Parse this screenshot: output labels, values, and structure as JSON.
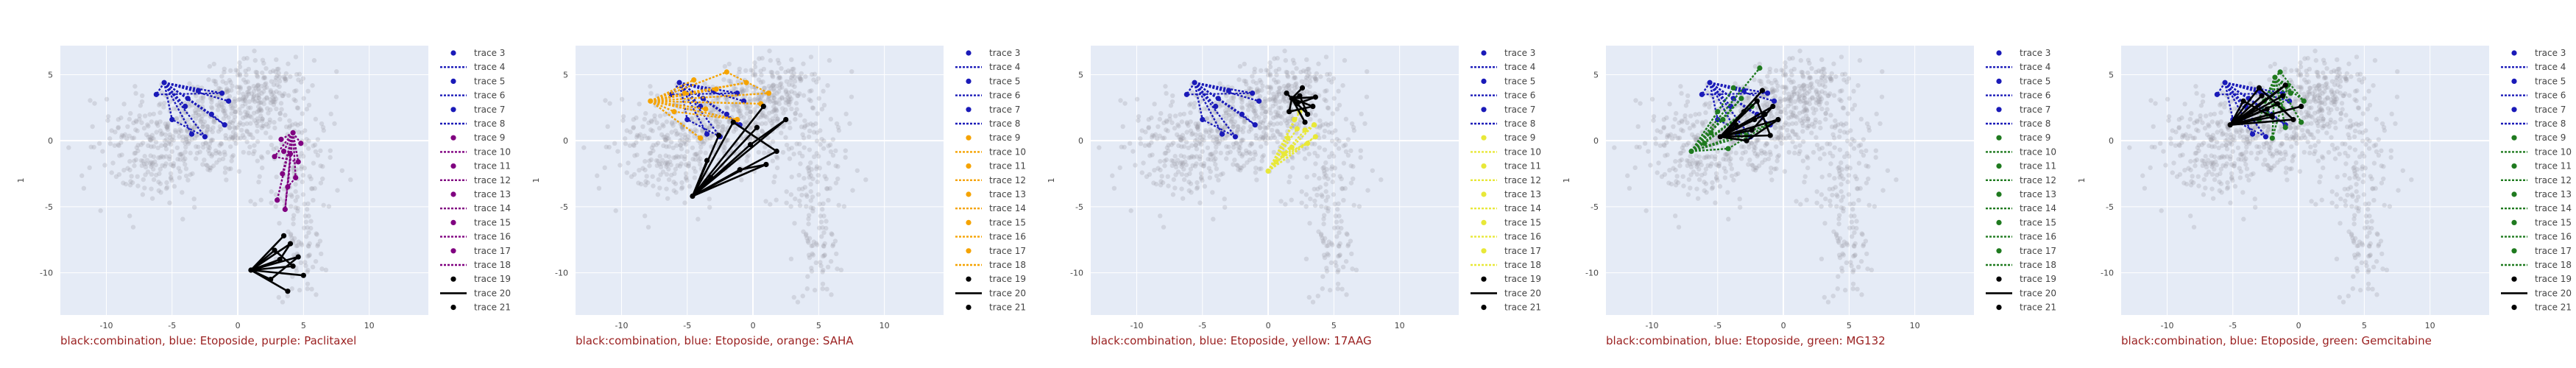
{
  "legend_traces": [
    "trace 3",
    "trace 4",
    "trace 5",
    "trace 6",
    "trace 7",
    "trace 8",
    "trace 9",
    "trace 10",
    "trace 11",
    "trace 12",
    "trace 13",
    "trace 14",
    "trace 15",
    "trace 16",
    "trace 17",
    "trace 18",
    "trace 19",
    "trace 20",
    "trace 21"
  ],
  "chart_data": [
    {
      "type": "scatter",
      "caption": "black:combination, blue: Etoposide, purple: Paclitaxel",
      "ylabel": "1",
      "xlim": [
        -13.5,
        14.5
      ],
      "ylim": [
        -13.2,
        7.2
      ],
      "xticks": [
        -10,
        -5,
        0,
        5,
        10
      ],
      "yticks": [
        5,
        0,
        -5,
        -10
      ],
      "grid": true,
      "legend_position": "right",
      "colors": {
        "background_points": "#9a9aa6",
        "etoposide": "#1a1ab8",
        "drug": "#800080",
        "combination": "#000000"
      },
      "etoposide": [
        [
          -5.6,
          4.4
        ],
        [
          -3.0,
          3.8
        ],
        [
          -1.2,
          3.6
        ],
        [
          -6.2,
          3.5
        ],
        [
          -4.0,
          2.6
        ],
        [
          -2.0,
          2.0
        ],
        [
          -1.0,
          1.2
        ],
        [
          -3.5,
          0.5
        ],
        [
          -2.5,
          0.3
        ],
        [
          -5.0,
          1.6
        ],
        [
          -0.7,
          3.0
        ],
        [
          -3.8,
          3.2
        ]
      ],
      "drug": [
        [
          4.2,
          0.6
        ],
        [
          3.5,
          -0.8
        ],
        [
          4.6,
          -1.6
        ],
        [
          2.8,
          -1.2
        ],
        [
          3.4,
          -2.5
        ],
        [
          4.4,
          -2.8
        ],
        [
          3.8,
          -3.5
        ],
        [
          3.0,
          -4.5
        ],
        [
          3.6,
          -5.2
        ],
        [
          4.0,
          -1.0
        ],
        [
          3.3,
          0.1
        ],
        [
          4.8,
          -0.2
        ]
      ],
      "combination": [
        [
          1.0,
          -9.8
        ],
        [
          3.5,
          -7.2
        ],
        [
          4.6,
          -8.8
        ],
        [
          2.5,
          -10.5
        ],
        [
          3.8,
          -11.4
        ],
        [
          4.2,
          -9.5
        ],
        [
          2.8,
          -8.3
        ],
        [
          5.0,
          -10.2
        ],
        [
          3.2,
          -9.0
        ],
        [
          4.0,
          -7.8
        ]
      ]
    },
    {
      "type": "scatter",
      "caption": "black:combination, blue: Etoposide, orange: SAHA",
      "ylabel": "1",
      "xlim": [
        -13.5,
        14.5
      ],
      "ylim": [
        -13.2,
        7.2
      ],
      "xticks": [
        -10,
        -5,
        0,
        5,
        10
      ],
      "yticks": [
        5,
        0,
        -5,
        -10
      ],
      "grid": true,
      "legend_position": "right",
      "colors": {
        "background_points": "#9a9aa6",
        "etoposide": "#1a1ab8",
        "drug": "#f5a300",
        "combination": "#000000"
      },
      "etoposide": [
        [
          -5.6,
          4.4
        ],
        [
          -3.0,
          3.8
        ],
        [
          -1.2,
          3.6
        ],
        [
          -6.2,
          3.5
        ],
        [
          -4.0,
          2.6
        ],
        [
          -2.0,
          2.0
        ],
        [
          -1.0,
          1.2
        ],
        [
          -3.5,
          0.5
        ],
        [
          -2.5,
          0.3
        ],
        [
          -5.0,
          1.6
        ],
        [
          -0.7,
          3.0
        ],
        [
          -3.8,
          3.2
        ]
      ],
      "drug": [
        [
          -7.8,
          3.0
        ],
        [
          -4.5,
          4.6
        ],
        [
          -2.0,
          5.2
        ],
        [
          1.2,
          3.6
        ],
        [
          -3.6,
          2.4
        ],
        [
          -6.0,
          2.2
        ],
        [
          -1.2,
          1.6
        ],
        [
          -4.0,
          0.2
        ],
        [
          -0.5,
          4.4
        ],
        [
          -5.2,
          3.6
        ],
        [
          0.6,
          2.8
        ],
        [
          -2.8,
          3.9
        ]
      ],
      "combination": [
        [
          -4.6,
          -4.2
        ],
        [
          0.8,
          2.6
        ],
        [
          -1.5,
          1.4
        ],
        [
          1.8,
          -0.8
        ],
        [
          -3.5,
          -1.5
        ],
        [
          -0.2,
          -0.3
        ],
        [
          2.5,
          1.6
        ],
        [
          -2.6,
          0.4
        ],
        [
          1.0,
          -1.8
        ],
        [
          -1.0,
          -2.2
        ],
        [
          0.3,
          1.0
        ],
        [
          -3.2,
          -2.8
        ]
      ]
    },
    {
      "type": "scatter",
      "caption": "black:combination, blue: Etoposide, yellow: 17AAG",
      "ylabel": "1",
      "xlim": [
        -13.5,
        14.5
      ],
      "ylim": [
        -13.2,
        7.2
      ],
      "xticks": [
        -10,
        -5,
        0,
        5,
        10
      ],
      "yticks": [
        5,
        0,
        -5,
        -10
      ],
      "grid": true,
      "legend_position": "right",
      "colors": {
        "background_points": "#9a9aa6",
        "etoposide": "#1a1ab8",
        "drug": "#e8e838",
        "combination": "#000000"
      },
      "etoposide": [
        [
          -5.6,
          4.4
        ],
        [
          -3.0,
          3.8
        ],
        [
          -1.2,
          3.6
        ],
        [
          -6.2,
          3.5
        ],
        [
          -4.0,
          2.6
        ],
        [
          -2.0,
          2.0
        ],
        [
          -1.0,
          1.2
        ],
        [
          -3.5,
          0.5
        ],
        [
          -2.5,
          0.3
        ],
        [
          -5.0,
          1.6
        ],
        [
          -0.7,
          3.0
        ],
        [
          -3.8,
          3.2
        ]
      ],
      "drug": [
        [
          0.0,
          -2.3
        ],
        [
          1.5,
          0.2
        ],
        [
          2.8,
          0.8
        ],
        [
          3.5,
          1.2
        ],
        [
          2.0,
          1.6
        ],
        [
          3.0,
          -0.2
        ],
        [
          1.2,
          -1.0
        ],
        [
          2.4,
          2.2
        ],
        [
          3.6,
          0.3
        ],
        [
          0.6,
          -1.6
        ],
        [
          2.2,
          0.9
        ],
        [
          1.8,
          -0.5
        ]
      ],
      "combination": [
        [
          1.8,
          3.2
        ],
        [
          2.6,
          4.0
        ],
        [
          3.4,
          2.6
        ],
        [
          1.6,
          2.2
        ],
        [
          2.8,
          1.4
        ],
        [
          3.6,
          3.3
        ],
        [
          2.2,
          2.8
        ],
        [
          1.4,
          3.6
        ],
        [
          3.0,
          2.0
        ],
        [
          2.4,
          3.4
        ]
      ]
    },
    {
      "type": "scatter",
      "caption": "black:combination, blue: Etoposide, green: MG132",
      "ylabel": "1",
      "xlim": [
        -13.5,
        14.5
      ],
      "ylim": [
        -13.2,
        7.2
      ],
      "xticks": [
        -10,
        -5,
        0,
        5,
        10
      ],
      "yticks": [
        5,
        0,
        -5,
        -10
      ],
      "grid": true,
      "legend_position": "right",
      "colors": {
        "background_points": "#9a9aa6",
        "etoposide": "#1a1ab8",
        "drug": "#1f7a1f",
        "combination": "#000000"
      },
      "etoposide": [
        [
          -5.6,
          4.4
        ],
        [
          -3.0,
          3.8
        ],
        [
          -1.2,
          3.6
        ],
        [
          -6.2,
          3.5
        ],
        [
          -4.0,
          2.6
        ],
        [
          -2.0,
          2.0
        ],
        [
          -1.0,
          1.2
        ],
        [
          -3.5,
          0.5
        ],
        [
          -2.5,
          0.3
        ],
        [
          -5.0,
          1.6
        ],
        [
          -0.7,
          3.0
        ],
        [
          -3.8,
          3.2
        ]
      ],
      "drug": [
        [
          -7.0,
          -0.8
        ],
        [
          -1.8,
          5.5
        ],
        [
          -4.6,
          1.6
        ],
        [
          -3.2,
          3.2
        ],
        [
          -5.5,
          0.6
        ],
        [
          -2.4,
          2.6
        ],
        [
          -6.0,
          -0.2
        ],
        [
          -3.8,
          4.0
        ],
        [
          -1.2,
          1.2
        ],
        [
          -4.2,
          -0.6
        ],
        [
          -2.8,
          0.4
        ],
        [
          -5.0,
          2.2
        ]
      ],
      "combination": [
        [
          -4.8,
          0.3
        ],
        [
          -1.6,
          3.8
        ],
        [
          -2.4,
          0.8
        ],
        [
          -0.8,
          2.6
        ],
        [
          -3.0,
          2.2
        ],
        [
          -1.0,
          0.4
        ],
        [
          -2.0,
          3.0
        ],
        [
          -3.6,
          1.2
        ],
        [
          -0.4,
          1.6
        ],
        [
          -2.8,
          0.0
        ],
        [
          -1.4,
          2.0
        ],
        [
          -2.2,
          1.6
        ]
      ]
    },
    {
      "type": "scatter",
      "caption": "black:combination, blue: Etoposide, green: Gemcitabine",
      "ylabel": "1",
      "xlim": [
        -13.5,
        14.5
      ],
      "ylim": [
        -13.2,
        7.2
      ],
      "xticks": [
        -10,
        -5,
        0,
        5,
        10
      ],
      "yticks": [
        5,
        0,
        -5,
        -10
      ],
      "grid": true,
      "legend_position": "right",
      "colors": {
        "background_points": "#9a9aa6",
        "etoposide": "#1a1ab8",
        "drug": "#1f7a1f",
        "combination": "#000000"
      },
      "etoposide": [
        [
          -5.6,
          4.4
        ],
        [
          -3.0,
          3.8
        ],
        [
          -1.2,
          3.6
        ],
        [
          -6.2,
          3.5
        ],
        [
          -4.0,
          2.6
        ],
        [
          -2.0,
          2.0
        ],
        [
          -1.0,
          1.2
        ],
        [
          -3.5,
          0.5
        ],
        [
          -2.5,
          0.3
        ],
        [
          -5.0,
          1.6
        ],
        [
          -0.7,
          3.0
        ],
        [
          -3.8,
          3.2
        ]
      ],
      "drug": [
        [
          -1.8,
          4.8
        ],
        [
          -0.6,
          3.6
        ],
        [
          -2.6,
          3.0
        ],
        [
          -1.2,
          2.4
        ],
        [
          0.2,
          1.4
        ],
        [
          -2.0,
          0.2
        ],
        [
          -0.8,
          4.2
        ],
        [
          -3.0,
          1.6
        ],
        [
          -1.4,
          5.2
        ],
        [
          0.4,
          3.0
        ],
        [
          -2.4,
          2.0
        ],
        [
          -1.0,
          1.0
        ]
      ],
      "combination": [
        [
          -5.2,
          1.2
        ],
        [
          -2.8,
          3.4
        ],
        [
          -1.0,
          4.2
        ],
        [
          -3.6,
          2.2
        ],
        [
          0.2,
          2.6
        ],
        [
          -2.0,
          1.8
        ],
        [
          -4.2,
          3.0
        ],
        [
          -1.6,
          2.8
        ],
        [
          -0.4,
          1.6
        ],
        [
          -3.0,
          4.0
        ],
        [
          -1.2,
          3.4
        ],
        [
          -2.4,
          2.4
        ]
      ]
    }
  ]
}
